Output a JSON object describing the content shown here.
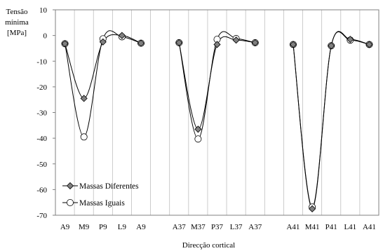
{
  "chart_data": {
    "type": "line",
    "ylabel_lines": [
      "Tensão",
      "mínima",
      "[MPa]"
    ],
    "xlabel": "Direcção cortical",
    "ylim": [
      -70,
      10
    ],
    "y_ticks": [
      10,
      0,
      -10,
      -20,
      -30,
      -40,
      -50,
      -60,
      -70
    ],
    "grid": "vertical",
    "legend_position": "bottom-left",
    "groups": [
      {
        "categories": [
          "A9",
          "M9",
          "P9",
          "L9",
          "A9"
        ],
        "series": [
          {
            "name": "Massas Diferentes",
            "values": [
              -3.2,
              -24.5,
              -2.5,
              0,
              -3
            ]
          },
          {
            "name": "Massas Iguais",
            "values": [
              -3.2,
              -39.5,
              -1.3,
              -0.5,
              -3
            ]
          }
        ]
      },
      {
        "categories": [
          "A37",
          "M37",
          "P37",
          "L37",
          "A37"
        ],
        "series": [
          {
            "name": "Massas Diferentes",
            "values": [
              -2.8,
              -36.5,
              -3.5,
              -1.8,
              -2.8
            ]
          },
          {
            "name": "Massas Iguais",
            "values": [
              -2.8,
              -40.3,
              -1.5,
              -1.2,
              -2.8
            ]
          }
        ]
      },
      {
        "categories": [
          "A41",
          "M41",
          "P41",
          "L41",
          "A41"
        ],
        "series": [
          {
            "name": "Massas Diferentes",
            "values": [
              -3.5,
              -67.5,
              -4,
              -1.5,
              -3.5
            ]
          },
          {
            "name": "Massas Iguais",
            "values": [
              -3.5,
              -66.8,
              -4,
              -1.8,
              -3.5
            ]
          }
        ]
      }
    ],
    "legend": [
      "Massas Diferentes",
      "Massas Iguais"
    ],
    "colors": {
      "line": "#000000",
      "diamond_fill": "#808080",
      "circle_fill": "#ffffff",
      "grid": "#bfbfbf"
    }
  }
}
